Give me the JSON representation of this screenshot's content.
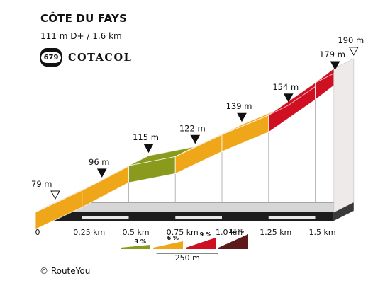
{
  "header": {
    "title": "CÔTE DU FAYS",
    "subtitle": "111 m D+ / 1.6 km"
  },
  "logo": {
    "number": "679",
    "text": "COTACOL"
  },
  "footer": {
    "copyright": "© RouteYou"
  },
  "colors": {
    "grade_3": "#8a9a1c",
    "grade_6": "#f0a619",
    "grade_9": "#cf1022",
    "grade_12": "#5c1a1a",
    "wall": "#ddd7d7",
    "base": "#d6d6d6",
    "ink": "#111111"
  },
  "chart_data": {
    "type": "area",
    "xlabel": "",
    "ylabel": "",
    "x_unit": "km",
    "y_unit": "m",
    "points": [
      {
        "km": 0,
        "elevation_m": 79,
        "label": "79 m",
        "marker": "start"
      },
      {
        "km": 0.25,
        "elevation_m": 96
      },
      {
        "km": 0.5,
        "elevation_m": 115
      },
      {
        "km": 0.75,
        "elevation_m": 122
      },
      {
        "km": 1.0,
        "elevation_m": 139
      },
      {
        "km": 1.25,
        "elevation_m": 154
      },
      {
        "km": 1.5,
        "elevation_m": 179
      },
      {
        "km": 1.6,
        "elevation_m": 190,
        "label": "190 m",
        "marker": "end"
      }
    ],
    "altitude_labels": [
      {
        "km": 0,
        "label": "79 m",
        "marker": "start"
      },
      {
        "km": 0.25,
        "label": "96 m",
        "marker": "filled"
      },
      {
        "km": 0.5,
        "label": "115 m",
        "marker": "filled"
      },
      {
        "km": 0.75,
        "label": "122 m",
        "marker": "filled"
      },
      {
        "km": 1.0,
        "label": "139 m",
        "marker": "filled"
      },
      {
        "km": 1.25,
        "label": "154 m",
        "marker": "filled"
      },
      {
        "km": 1.5,
        "label": "179 m",
        "marker": "filled"
      },
      {
        "km": 1.6,
        "label": "190 m",
        "marker": "end"
      }
    ],
    "segments": [
      {
        "from_km": 0,
        "to_km": 0.5,
        "grade": "6 %"
      },
      {
        "from_km": 0.5,
        "to_km": 0.75,
        "grade": "3 %"
      },
      {
        "from_km": 0.75,
        "to_km": 1.25,
        "grade": "6 %"
      },
      {
        "from_km": 1.25,
        "to_km": 1.6,
        "grade": "9 %"
      }
    ],
    "x_ticks": [
      {
        "km": 0,
        "label": "0"
      },
      {
        "km": 0.25,
        "label": "0.25 km"
      },
      {
        "km": 0.5,
        "label": "0.5 km"
      },
      {
        "km": 0.75,
        "label": "0.75 km"
      },
      {
        "km": 1.0,
        "label": "1.0 km"
      },
      {
        "km": 1.25,
        "label": "1.25 km"
      },
      {
        "km": 1.5,
        "label": "1.5 km"
      }
    ],
    "legend": {
      "grades": [
        {
          "label": "3 %",
          "color": "#8a9a1c"
        },
        {
          "label": "6 %",
          "color": "#f0a619"
        },
        {
          "label": "9 %",
          "color": "#cf1022"
        },
        {
          "label": "12 %",
          "color": "#5c1a1a"
        }
      ],
      "scale_label": "250 m"
    }
  }
}
